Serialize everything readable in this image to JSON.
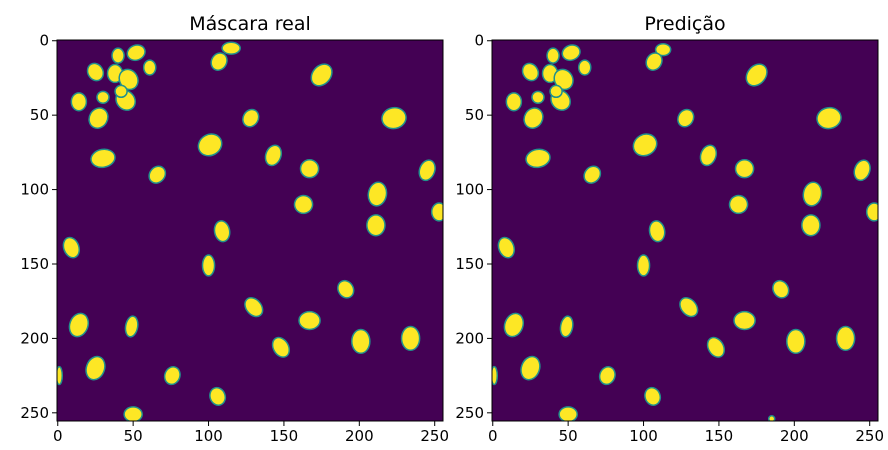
{
  "chart_data": [
    {
      "type": "heatmap",
      "title": "Máscara real",
      "xlim": [
        0,
        255
      ],
      "ylim": [
        255,
        0
      ],
      "x_ticks": [
        0,
        50,
        100,
        150,
        200,
        250
      ],
      "y_ticks": [
        0,
        50,
        100,
        150,
        200,
        250
      ],
      "xlabel": "",
      "ylabel": "",
      "colors": {
        "background": "#440154",
        "cell": "#fde725",
        "edge": "#21918c"
      },
      "cells": [
        {
          "x": 25,
          "y": 21,
          "rx": 5,
          "ry": 6,
          "angle": -30
        },
        {
          "x": 38,
          "y": 22,
          "rx": 5,
          "ry": 6,
          "angle": 0
        },
        {
          "x": 52,
          "y": 8,
          "rx": 6,
          "ry": 5,
          "angle": -20
        },
        {
          "x": 40,
          "y": 10,
          "rx": 4,
          "ry": 5,
          "angle": 0
        },
        {
          "x": 61,
          "y": 18,
          "rx": 4,
          "ry": 5,
          "angle": 0
        },
        {
          "x": 47,
          "y": 26,
          "rx": 6,
          "ry": 7,
          "angle": -30
        },
        {
          "x": 30,
          "y": 38,
          "rx": 4,
          "ry": 4,
          "angle": 0
        },
        {
          "x": 14,
          "y": 41,
          "rx": 5,
          "ry": 6,
          "angle": 0
        },
        {
          "x": 45,
          "y": 40,
          "rx": 6,
          "ry": 7,
          "angle": -40
        },
        {
          "x": 27,
          "y": 52,
          "rx": 6,
          "ry": 7,
          "angle": 30
        },
        {
          "x": 42,
          "y": 34,
          "rx": 4,
          "ry": 4,
          "angle": 0
        },
        {
          "x": 115,
          "y": 5,
          "rx": 6,
          "ry": 4,
          "angle": 0
        },
        {
          "x": 107,
          "y": 14,
          "rx": 5,
          "ry": 6,
          "angle": 30
        },
        {
          "x": 175,
          "y": 23,
          "rx": 6,
          "ry": 8,
          "angle": 40
        },
        {
          "x": 128,
          "y": 52,
          "rx": 5,
          "ry": 6,
          "angle": 30
        },
        {
          "x": 223,
          "y": 52,
          "rx": 8,
          "ry": 7,
          "angle": -10
        },
        {
          "x": 30,
          "y": 79,
          "rx": 8,
          "ry": 6,
          "angle": -10
        },
        {
          "x": 66,
          "y": 90,
          "rx": 5,
          "ry": 6,
          "angle": 40
        },
        {
          "x": 101,
          "y": 70,
          "rx": 8,
          "ry": 7,
          "angle": -30
        },
        {
          "x": 143,
          "y": 77,
          "rx": 5,
          "ry": 7,
          "angle": 20
        },
        {
          "x": 167,
          "y": 86,
          "rx": 6,
          "ry": 6,
          "angle": 0
        },
        {
          "x": 245,
          "y": 87,
          "rx": 5,
          "ry": 7,
          "angle": 20
        },
        {
          "x": 212,
          "y": 103,
          "rx": 6,
          "ry": 8,
          "angle": 10
        },
        {
          "x": 163,
          "y": 110,
          "rx": 6,
          "ry": 6,
          "angle": -20
        },
        {
          "x": 253,
          "y": 115,
          "rx": 5,
          "ry": 6,
          "angle": 0
        },
        {
          "x": 109,
          "y": 128,
          "rx": 5,
          "ry": 7,
          "angle": -10
        },
        {
          "x": 211,
          "y": 124,
          "rx": 6,
          "ry": 7,
          "angle": 0
        },
        {
          "x": 9,
          "y": 139,
          "rx": 5,
          "ry": 7,
          "angle": -20
        },
        {
          "x": 100,
          "y": 151,
          "rx": 4,
          "ry": 7,
          "angle": 0
        },
        {
          "x": 191,
          "y": 167,
          "rx": 5,
          "ry": 6,
          "angle": -30
        },
        {
          "x": 130,
          "y": 179,
          "rx": 5,
          "ry": 7,
          "angle": -40
        },
        {
          "x": 167,
          "y": 188,
          "rx": 7,
          "ry": 6,
          "angle": 0
        },
        {
          "x": 14,
          "y": 191,
          "rx": 6,
          "ry": 8,
          "angle": 20
        },
        {
          "x": 49,
          "y": 192,
          "rx": 4,
          "ry": 7,
          "angle": 10
        },
        {
          "x": 148,
          "y": 206,
          "rx": 5,
          "ry": 7,
          "angle": -30
        },
        {
          "x": 201,
          "y": 202,
          "rx": 6,
          "ry": 8,
          "angle": 0
        },
        {
          "x": 234,
          "y": 200,
          "rx": 6,
          "ry": 8,
          "angle": 0
        },
        {
          "x": 25,
          "y": 220,
          "rx": 6,
          "ry": 8,
          "angle": 20
        },
        {
          "x": 76,
          "y": 225,
          "rx": 5,
          "ry": 6,
          "angle": 20
        },
        {
          "x": 1,
          "y": 225,
          "rx": 2,
          "ry": 6,
          "angle": 0
        },
        {
          "x": 106,
          "y": 239,
          "rx": 5,
          "ry": 6,
          "angle": -20
        },
        {
          "x": 50,
          "y": 251,
          "rx": 6,
          "ry": 5,
          "angle": 0
        }
      ]
    },
    {
      "type": "heatmap",
      "title": "Predição",
      "xlim": [
        0,
        255
      ],
      "ylim": [
        255,
        0
      ],
      "x_ticks": [
        0,
        50,
        100,
        150,
        200,
        250
      ],
      "y_ticks": [
        0,
        50,
        100,
        150,
        200,
        250
      ],
      "xlabel": "",
      "ylabel": "",
      "colors": {
        "background": "#440154",
        "cell": "#fde725",
        "edge": "#21918c"
      },
      "cells": [
        {
          "x": 25,
          "y": 21,
          "rx": 5,
          "ry": 6,
          "angle": -30
        },
        {
          "x": 38,
          "y": 22,
          "rx": 5,
          "ry": 6,
          "angle": 0
        },
        {
          "x": 52,
          "y": 8,
          "rx": 6,
          "ry": 5,
          "angle": -20
        },
        {
          "x": 40,
          "y": 10,
          "rx": 4,
          "ry": 5,
          "angle": 0
        },
        {
          "x": 61,
          "y": 18,
          "rx": 4,
          "ry": 5,
          "angle": 0
        },
        {
          "x": 47,
          "y": 26,
          "rx": 6,
          "ry": 7,
          "angle": -30
        },
        {
          "x": 30,
          "y": 38,
          "rx": 4,
          "ry": 4,
          "angle": 0
        },
        {
          "x": 14,
          "y": 41,
          "rx": 5,
          "ry": 6,
          "angle": 0
        },
        {
          "x": 45,
          "y": 40,
          "rx": 6,
          "ry": 7,
          "angle": -40
        },
        {
          "x": 27,
          "y": 52,
          "rx": 6,
          "ry": 7,
          "angle": 30
        },
        {
          "x": 42,
          "y": 34,
          "rx": 4,
          "ry": 4,
          "angle": 0
        },
        {
          "x": 113,
          "y": 6,
          "rx": 5,
          "ry": 4,
          "angle": 0
        },
        {
          "x": 107,
          "y": 14,
          "rx": 5,
          "ry": 6,
          "angle": 30
        },
        {
          "x": 175,
          "y": 23,
          "rx": 6,
          "ry": 8,
          "angle": 40
        },
        {
          "x": 128,
          "y": 52,
          "rx": 5,
          "ry": 6,
          "angle": 30
        },
        {
          "x": 223,
          "y": 52,
          "rx": 8,
          "ry": 7,
          "angle": -10
        },
        {
          "x": 30,
          "y": 79,
          "rx": 8,
          "ry": 6,
          "angle": -10
        },
        {
          "x": 66,
          "y": 90,
          "rx": 5,
          "ry": 6,
          "angle": 40
        },
        {
          "x": 101,
          "y": 70,
          "rx": 8,
          "ry": 7,
          "angle": -30
        },
        {
          "x": 143,
          "y": 77,
          "rx": 5,
          "ry": 7,
          "angle": 20
        },
        {
          "x": 167,
          "y": 86,
          "rx": 6,
          "ry": 6,
          "angle": 0
        },
        {
          "x": 245,
          "y": 87,
          "rx": 5,
          "ry": 7,
          "angle": 20
        },
        {
          "x": 212,
          "y": 103,
          "rx": 6,
          "ry": 8,
          "angle": 10
        },
        {
          "x": 163,
          "y": 110,
          "rx": 6,
          "ry": 6,
          "angle": -20
        },
        {
          "x": 253,
          "y": 115,
          "rx": 5,
          "ry": 6,
          "angle": 0
        },
        {
          "x": 109,
          "y": 128,
          "rx": 5,
          "ry": 7,
          "angle": -10
        },
        {
          "x": 211,
          "y": 124,
          "rx": 6,
          "ry": 7,
          "angle": 0
        },
        {
          "x": 9,
          "y": 139,
          "rx": 5,
          "ry": 7,
          "angle": -20
        },
        {
          "x": 100,
          "y": 151,
          "rx": 4,
          "ry": 7,
          "angle": 0
        },
        {
          "x": 191,
          "y": 167,
          "rx": 5,
          "ry": 6,
          "angle": -30
        },
        {
          "x": 130,
          "y": 179,
          "rx": 5,
          "ry": 7,
          "angle": -40
        },
        {
          "x": 167,
          "y": 188,
          "rx": 7,
          "ry": 6,
          "angle": 0
        },
        {
          "x": 14,
          "y": 191,
          "rx": 6,
          "ry": 8,
          "angle": 20
        },
        {
          "x": 49,
          "y": 192,
          "rx": 4,
          "ry": 7,
          "angle": 10
        },
        {
          "x": 148,
          "y": 206,
          "rx": 5,
          "ry": 7,
          "angle": -30
        },
        {
          "x": 201,
          "y": 202,
          "rx": 6,
          "ry": 8,
          "angle": 0
        },
        {
          "x": 234,
          "y": 200,
          "rx": 6,
          "ry": 8,
          "angle": 0
        },
        {
          "x": 25,
          "y": 220,
          "rx": 6,
          "ry": 8,
          "angle": 20
        },
        {
          "x": 76,
          "y": 225,
          "rx": 5,
          "ry": 6,
          "angle": 20
        },
        {
          "x": 1,
          "y": 225,
          "rx": 2,
          "ry": 6,
          "angle": 0
        },
        {
          "x": 106,
          "y": 239,
          "rx": 5,
          "ry": 6,
          "angle": -20
        },
        {
          "x": 50,
          "y": 251,
          "rx": 6,
          "ry": 5,
          "angle": 0
        },
        {
          "x": 185,
          "y": 254,
          "rx": 2,
          "ry": 2,
          "angle": 0
        }
      ]
    }
  ]
}
